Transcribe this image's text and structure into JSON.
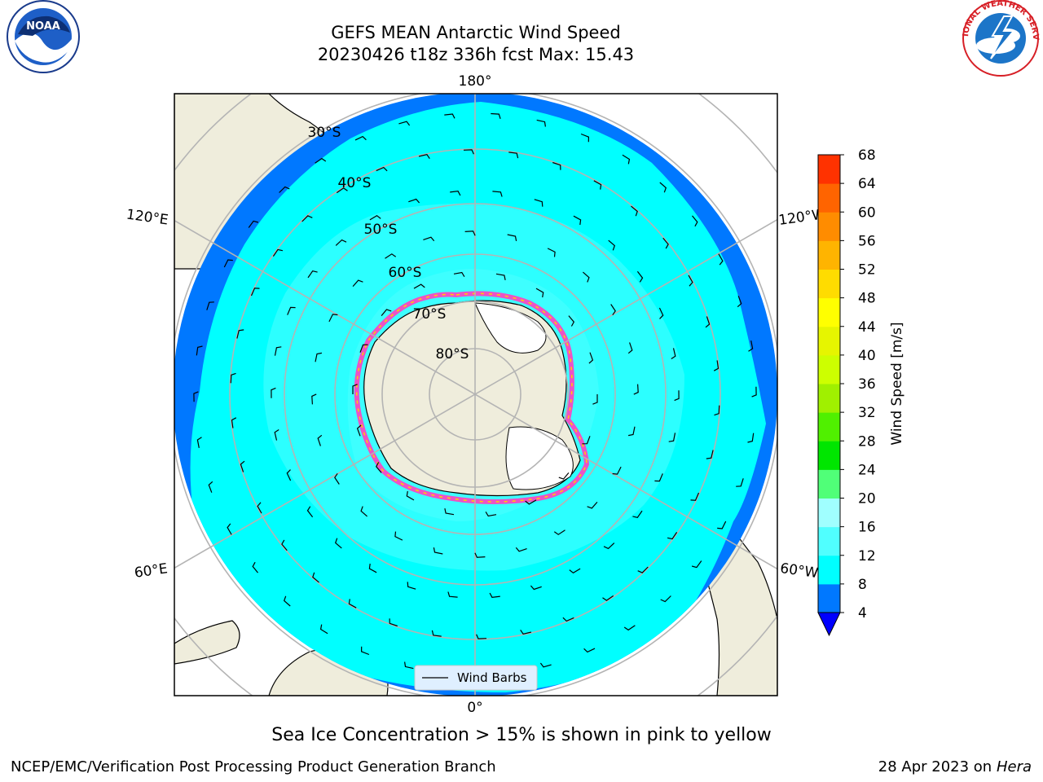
{
  "title": {
    "line1": "GEFS MEAN Antarctic Wind Speed",
    "line2": "20230426 t18z 336h fcst   Max: 15.43"
  },
  "logos": {
    "left": "noaa-logo",
    "left_text": "NOAA",
    "right": "national-weather-service-logo",
    "right_text": "NATIONAL WEATHER SERVICE"
  },
  "map": {
    "projection": "south-polar-stereographic",
    "longitude_labels": {
      "top": "180°",
      "bottom": "0°",
      "upper_left": "120°E",
      "upper_right": "120°W",
      "lower_left": "60°E",
      "lower_right": "60°W"
    },
    "latitude_labels": [
      "30°S",
      "40°S",
      "50°S",
      "60°S",
      "70°S",
      "80°S"
    ],
    "legend": {
      "label": "Wind Barbs"
    },
    "colors": {
      "land": "#efeddc",
      "sea_ice": "#ffffff",
      "ocean_frame": "#ffffff",
      "grid": "#b4b4b4"
    }
  },
  "colorbar": {
    "label": "Wind Speed [m/s]",
    "ticks": [
      "4",
      "8",
      "12",
      "16",
      "20",
      "24",
      "28",
      "32",
      "36",
      "40",
      "44",
      "48",
      "52",
      "56",
      "60",
      "64",
      "68"
    ],
    "colors": [
      "#0078ff",
      "#00ffff",
      "#50ffff",
      "#a0ffff",
      "#50ff78",
      "#00e600",
      "#50f000",
      "#a0f000",
      "#cdff00",
      "#e6f500",
      "#ffff00",
      "#ffdc00",
      "#ffb400",
      "#ff8c00",
      "#ff6400",
      "#ff3200",
      "#ff0000"
    ],
    "extend_color": "#0000ff"
  },
  "caption": "Sea Ice Concentration > 15% is shown in pink to yellow",
  "footer": {
    "left": "NCEP/EMC/Verification Post Processing Product Generation Branch",
    "right_prefix": "28 Apr 2023 on ",
    "right_machine": "Hera"
  }
}
